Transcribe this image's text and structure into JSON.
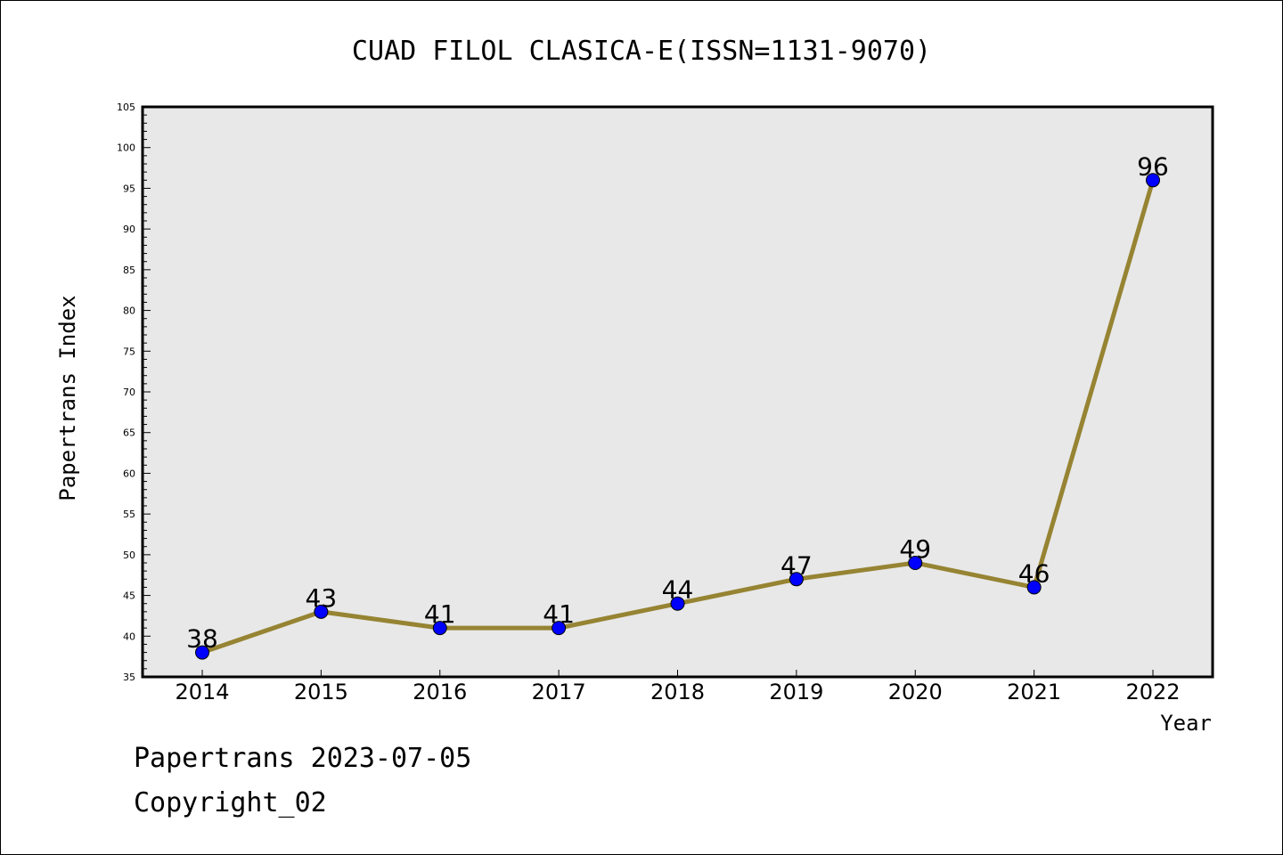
{
  "chart_data": {
    "type": "line",
    "title": "CUAD FILOL CLASICA-E(ISSN=1131-9070)",
    "xlabel": "Year",
    "ylabel": "Papertrans Index",
    "x": [
      "2014",
      "2015",
      "2016",
      "2017",
      "2018",
      "2019",
      "2020",
      "2021",
      "2022"
    ],
    "series": [
      {
        "values": [
          38,
          43,
          41,
          41,
          44,
          47,
          49,
          46,
          96
        ],
        "line_color": "#968433",
        "marker_color": "#0000ff"
      }
    ],
    "ylim": [
      35,
      105
    ],
    "y_ticks": [
      35,
      40,
      45,
      50,
      55,
      60,
      65,
      70,
      75,
      80,
      85,
      90,
      95,
      100,
      105
    ],
    "y_minor_step": 1,
    "grid": false,
    "plot_background": "#e8e8e8",
    "data_labels": true
  },
  "footer": {
    "date_line": "Papertrans 2023-07-05",
    "copyright": "Copyright_02"
  }
}
